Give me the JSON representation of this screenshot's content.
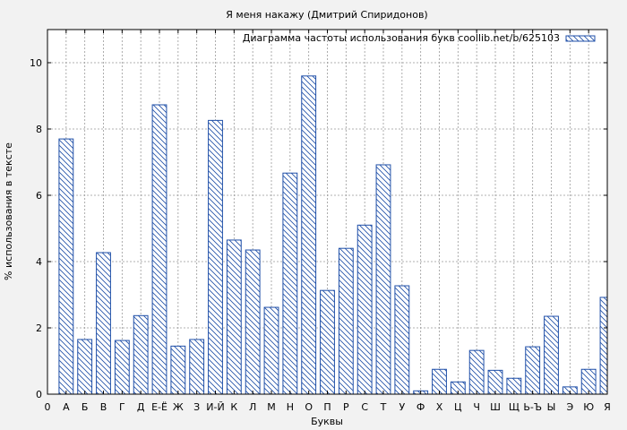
{
  "chart_data": {
    "type": "bar",
    "title": "Я меня накажу (Дмитрий Спиридонов)",
    "xlabel": "Буквы",
    "ylabel": "% использования в тексте",
    "legend": {
      "label": "Диаграмма частоты использования букв coollib.net/b/625103",
      "placement": "top-right"
    },
    "x_ticks": [
      "0",
      "А",
      "Б",
      "В",
      "Г",
      "Д",
      "Е-Ё",
      "Ж",
      "З",
      "И-Й",
      "К",
      "Л",
      "М",
      "Н",
      "О",
      "П",
      "Р",
      "С",
      "Т",
      "У",
      "Ф",
      "Х",
      "Ц",
      "Ч",
      "Ш",
      "Щ",
      "Ь-Ъ",
      "Ы",
      "Э",
      "Ю",
      "Я"
    ],
    "categories": [
      "А",
      "Б",
      "В",
      "Г",
      "Д",
      "Е-Ё",
      "Ж",
      "З",
      "И-Й",
      "К",
      "Л",
      "М",
      "Н",
      "О",
      "П",
      "Р",
      "С",
      "Т",
      "У",
      "Ф",
      "Х",
      "Ц",
      "Ч",
      "Ш",
      "Щ",
      "Ь-Ъ",
      "Ы",
      "Э",
      "Ю",
      "Я"
    ],
    "values": [
      7.7,
      1.65,
      4.27,
      1.62,
      2.37,
      8.73,
      1.45,
      1.65,
      8.26,
      4.65,
      4.35,
      2.62,
      6.67,
      9.6,
      3.13,
      4.4,
      5.1,
      6.92,
      3.27,
      0.1,
      0.75,
      0.37,
      1.32,
      0.72,
      0.48,
      1.43,
      2.35,
      0.22,
      0.75,
      2.92
    ],
    "yticks": [
      0,
      2,
      4,
      6,
      8,
      10
    ],
    "ylim": [
      0,
      11
    ],
    "xlim": [
      0,
      30
    ],
    "grid": true,
    "colors": {
      "bar_stroke": "#1f4fa8",
      "hatch": "#1f4fa8",
      "bar_fill": "#ffffff",
      "plot_bg": "#ffffff",
      "page_bg": "#f2f2f2",
      "grid": "#999999"
    }
  }
}
